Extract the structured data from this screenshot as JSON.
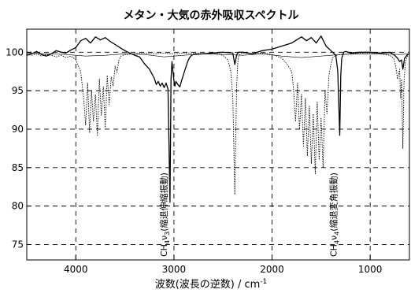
{
  "chart_data": {
    "type": "line",
    "title": "メタン・大気の赤外吸収スペクトル",
    "xlabel": "波数(波長の逆数) / cm",
    "xlabel_sup": "-1",
    "ylabel": "",
    "x_axis": {
      "range": [
        4500,
        600
      ],
      "reversed": true,
      "ticks": [
        4000,
        3000,
        2000,
        1000
      ]
    },
    "y_axis": {
      "range": [
        73,
        103
      ],
      "ticks": [
        75,
        80,
        85,
        90,
        95,
        100
      ]
    },
    "grid": true,
    "x_tick_labels": [
      "4000",
      "3000",
      "2000",
      "1000"
    ],
    "y_tick_labels": [
      "75",
      "80",
      "85",
      "90",
      "95",
      "100"
    ],
    "annotations": [
      {
        "text_main": "CH",
        "sub": "4",
        "nu": "ν",
        "nu_sub": "3",
        "text_paren": "(縮退伸縮振動)",
        "x": 3040
      },
      {
        "text_main": "CH",
        "sub": "4",
        "nu": "ν",
        "nu_sub": "4",
        "text_paren": "(縮退変角振動)",
        "x": 1310
      }
    ],
    "series": [
      {
        "style": "solid",
        "color": "#000000",
        "x": [
          4500,
          4450,
          4400,
          4350,
          4300,
          4250,
          4200,
          4150,
          4100,
          4050,
          4000,
          3950,
          3900,
          3850,
          3800,
          3750,
          3700,
          3650,
          3600,
          3550,
          3500,
          3450,
          3400,
          3350,
          3300,
          3250,
          3200,
          3180,
          3160,
          3140,
          3120,
          3100,
          3080,
          3060,
          3040,
          3030,
          3020,
          3010,
          3000,
          2990,
          2980,
          2960,
          2940,
          2920,
          2900,
          2880,
          2860,
          2840,
          2820,
          2800,
          2700,
          2600,
          2500,
          2400,
          2380,
          2360,
          2340,
          2300,
          2200,
          2100,
          2000,
          1900,
          1800,
          1750,
          1700,
          1650,
          1600,
          1550,
          1500,
          1450,
          1400,
          1350,
          1330,
          1310,
          1300,
          1290,
          1270,
          1250,
          1200,
          1100,
          1000,
          900,
          800,
          750,
          720,
          700,
          680,
          667,
          650,
          620,
          600
        ],
        "y": [
          99.6,
          99.8,
          100.1,
          99.7,
          99.5,
          99.8,
          100.2,
          100.0,
          99.9,
          100.3,
          100.6,
          101.5,
          101.8,
          101.2,
          102.0,
          101.6,
          101.9,
          101.4,
          101.0,
          100.6,
          100.2,
          99.9,
          99.6,
          99.4,
          98.5,
          97.8,
          96.6,
          95.8,
          96.2,
          95.6,
          96.0,
          95.4,
          96.0,
          95.2,
          80.5,
          96.5,
          98.8,
          97.5,
          96.3,
          95.6,
          96.2,
          95.8,
          95.5,
          96.4,
          97.2,
          98.0,
          98.8,
          99.3,
          99.6,
          99.7,
          99.8,
          99.9,
          100.0,
          99.9,
          98.4,
          99.7,
          100.0,
          100.0,
          99.8,
          100.2,
          100.4,
          100.8,
          101.2,
          101.6,
          102.0,
          101.5,
          101.9,
          101.2,
          102.1,
          100.8,
          100.2,
          99.6,
          97.5,
          89.2,
          97.0,
          99.2,
          100.0,
          100.1,
          99.9,
          100.0,
          100.0,
          99.9,
          100.0,
          99.6,
          99.2,
          98.8,
          99.0,
          97.8,
          99.2,
          99.7,
          99.8
        ]
      },
      {
        "style": "dotted",
        "color": "#000000",
        "x": [
          4500,
          4450,
          4400,
          4350,
          4300,
          4250,
          4200,
          4150,
          4100,
          4050,
          4000,
          3950,
          3920,
          3900,
          3880,
          3860,
          3840,
          3820,
          3800,
          3780,
          3760,
          3740,
          3720,
          3700,
          3680,
          3660,
          3640,
          3620,
          3600,
          3580,
          3560,
          3540,
          3500,
          3400,
          3300,
          3200,
          3100,
          3000,
          2900,
          2800,
          2700,
          2600,
          2500,
          2450,
          2420,
          2400,
          2390,
          2380,
          2370,
          2360,
          2350,
          2340,
          2320,
          2300,
          2250,
          2200,
          2100,
          2000,
          1950,
          1900,
          1850,
          1800,
          1780,
          1760,
          1740,
          1720,
          1700,
          1680,
          1660,
          1640,
          1620,
          1600,
          1580,
          1560,
          1540,
          1520,
          1500,
          1480,
          1460,
          1440,
          1420,
          1400,
          1380,
          1350,
          1300,
          1200,
          1100,
          1000,
          900,
          800,
          760,
          740,
          720,
          700,
          690,
          680,
          667,
          655,
          640,
          620,
          600
        ],
        "y": [
          99.7,
          99.6,
          99.8,
          99.5,
          99.7,
          99.6,
          99.4,
          99.6,
          99.3,
          99.5,
          99.0,
          97.5,
          94.0,
          90.5,
          96.0,
          89.5,
          95.0,
          91.0,
          94.5,
          89.2,
          96.5,
          91.8,
          95.5,
          90.2,
          97.0,
          93.2,
          96.8,
          95.6,
          98.2,
          97.4,
          99.0,
          99.5,
          99.7,
          99.8,
          99.9,
          99.8,
          99.9,
          99.8,
          99.9,
          99.9,
          99.8,
          99.9,
          99.6,
          99.0,
          97.5,
          94.0,
          88.0,
          81.5,
          89.0,
          96.0,
          98.5,
          99.5,
          99.8,
          99.9,
          99.9,
          99.8,
          99.9,
          99.7,
          99.5,
          99.2,
          98.5,
          97.5,
          95.0,
          91.0,
          96.0,
          90.0,
          94.5,
          87.8,
          94.0,
          86.5,
          93.0,
          85.5,
          92.0,
          84.2,
          93.5,
          86.0,
          91.5,
          85.0,
          95.0,
          92.0,
          97.0,
          98.5,
          99.3,
          99.6,
          99.7,
          99.8,
          99.9,
          99.9,
          99.8,
          99.6,
          99.2,
          98.2,
          96.5,
          97.8,
          94.0,
          96.5,
          87.5,
          96.2,
          98.8,
          99.5,
          99.6
        ]
      },
      {
        "style": "thin-solid",
        "color": "#000000",
        "x": [
          4500,
          4300,
          4100,
          3900,
          3700,
          3500,
          3300,
          3100,
          2900,
          2700,
          2500,
          2300,
          2100,
          1900,
          1700,
          1500,
          1300,
          1100,
          900,
          700,
          600
        ],
        "y": [
          99.9,
          99.8,
          99.7,
          99.5,
          99.6,
          99.8,
          99.7,
          99.4,
          99.6,
          99.8,
          99.7,
          99.6,
          99.8,
          99.5,
          99.3,
          99.5,
          99.7,
          99.8,
          99.8,
          99.7,
          99.8
        ]
      }
    ]
  }
}
